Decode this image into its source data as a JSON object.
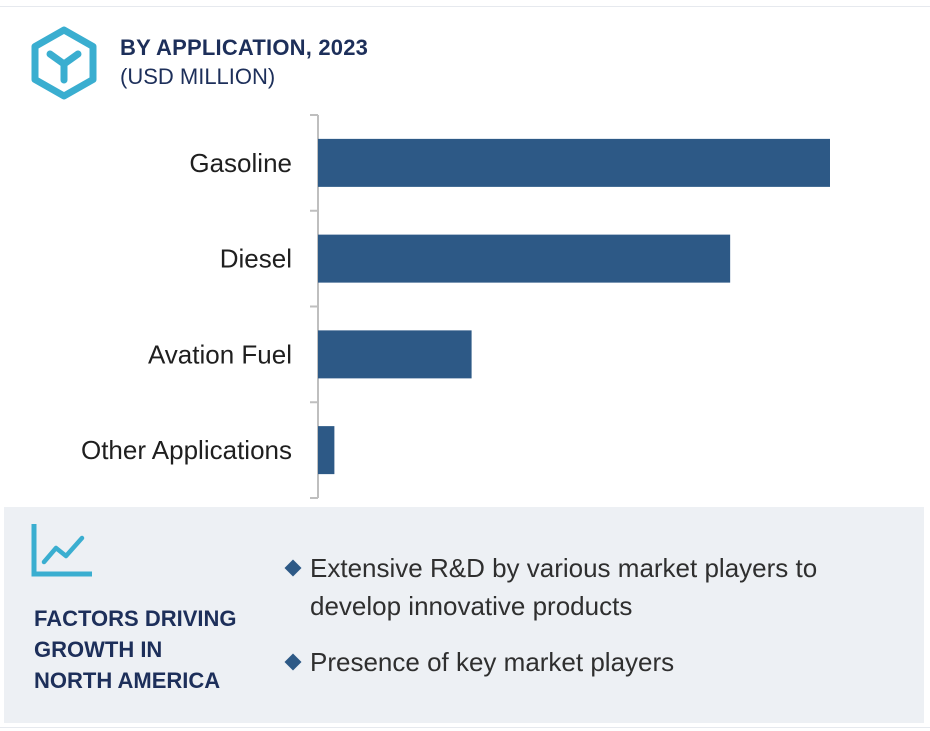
{
  "header": {
    "title": "BY APPLICATION, 2023",
    "subtitle": "(USD MILLION)",
    "logo_icon": "hexagon-y-logo-icon"
  },
  "chart_data": {
    "type": "bar",
    "orientation": "horizontal",
    "title": "BY APPLICATION, 2023",
    "subtitle": "(USD MILLION)",
    "categories": [
      "Gasoline",
      "Diesel",
      "Avation Fuel",
      "Other Applications"
    ],
    "values": [
      100,
      80.5,
      30,
      3.2
    ],
    "xlim": [
      0,
      100
    ],
    "value_axis_shown": false,
    "grid": false,
    "legend": "none",
    "bar_color": "#2d5986"
  },
  "factors": {
    "icon": "trend-line-chart-icon",
    "title_lines": [
      "FACTORS DRIVING",
      "GROWTH IN",
      "NORTH AMERICA"
    ],
    "bullets": [
      "Extensive R&D by various market players to develop innovative products",
      "Presence of key market players"
    ]
  },
  "colors": {
    "bar": "#2d5986",
    "heading": "#1d2f5a",
    "accent": "#3aaed0",
    "panel_bg": "#edf0f4",
    "axis": "#bfbfbf"
  }
}
